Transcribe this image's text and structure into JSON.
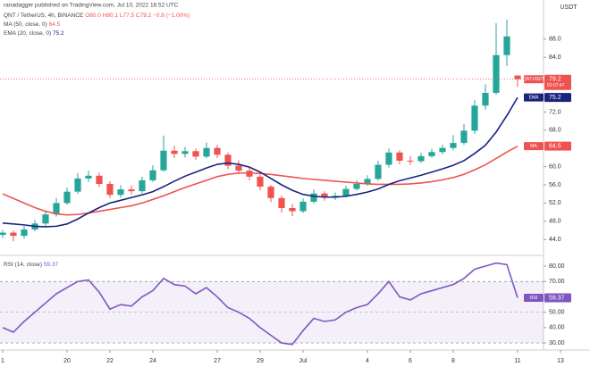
{
  "attribution": "ranadagger published on TradingView.com, Jul 10, 2022 16:52 UTC",
  "chart_data": [
    {
      "type": "candlestick",
      "title": "QNT / TetherUS, 4h, BINANCE",
      "ohlc_readout": "O80.0 H80.1 L77.5 C79.2 −0.8 (−1.00%)",
      "currency": "USDT",
      "symbol_tag": "QNTUSDT",
      "countdown": "01:07:47",
      "x": [
        17,
        17.5,
        18,
        18.5,
        19,
        19.5,
        20,
        20.5,
        21,
        21.5,
        22,
        22.5,
        23,
        23.5,
        24,
        24.5,
        25,
        25.5,
        26,
        26.5,
        27,
        27.5,
        28,
        28.5,
        29,
        29.5,
        30,
        30.5,
        31,
        31.5,
        32,
        32.5,
        33,
        33.5,
        34,
        34.5,
        35,
        35.5,
        36,
        36.5,
        37,
        37.5,
        38,
        38.5,
        39,
        39.5,
        40,
        40.5,
        41
      ],
      "open": [
        45.0,
        45.5,
        44.8,
        46.2,
        47.5,
        49.5,
        52.0,
        54.5,
        57.4,
        58.0,
        56.2,
        53.8,
        55.0,
        54.6,
        57.0,
        59.2,
        63.5,
        62.8,
        63.4,
        62.2,
        64.1,
        62.6,
        60.2,
        59.1,
        57.8,
        55.6,
        53.1,
        50.9,
        50.2,
        52.3,
        54.1,
        53.2,
        53.6,
        55.1,
        56.2,
        57.3,
        60.4,
        63.1,
        61.3,
        61.2,
        62.3,
        63.2,
        64.1,
        65.2,
        67.9,
        73.4,
        76.2,
        84.5,
        80.0
      ],
      "high": [
        46.1,
        46.0,
        46.9,
        48.3,
        50.2,
        53.1,
        55.4,
        58.6,
        59.1,
        58.7,
        56.8,
        55.9,
        55.8,
        57.8,
        60.3,
        66.8,
        64.6,
        64.3,
        64.0,
        65.3,
        64.8,
        63.1,
        61.4,
        59.9,
        58.3,
        56.0,
        53.6,
        51.8,
        53.0,
        55.0,
        54.6,
        54.3,
        55.8,
        57.0,
        58.1,
        61.3,
        64.0,
        63.6,
        62.3,
        63.0,
        63.9,
        64.8,
        66.9,
        69.3,
        74.6,
        78.1,
        91.5,
        92.3,
        80.1
      ],
      "low": [
        44.3,
        43.6,
        44.2,
        45.8,
        46.9,
        49.0,
        51.6,
        54.0,
        56.6,
        55.5,
        53.1,
        53.2,
        53.9,
        54.1,
        56.6,
        58.9,
        61.9,
        62.0,
        61.5,
        61.8,
        61.9,
        59.4,
        58.3,
        57.0,
        54.8,
        52.2,
        49.9,
        49.1,
        49.8,
        51.9,
        52.5,
        52.7,
        53.2,
        54.7,
        55.8,
        56.9,
        59.8,
        60.5,
        60.4,
        60.8,
        61.9,
        62.7,
        63.6,
        64.8,
        67.2,
        72.5,
        75.8,
        82.1,
        77.5
      ],
      "close": [
        45.5,
        44.8,
        46.2,
        47.5,
        49.5,
        52.0,
        54.5,
        57.4,
        58.0,
        56.2,
        53.8,
        55.0,
        54.6,
        57.0,
        59.2,
        63.5,
        62.8,
        63.4,
        62.2,
        64.1,
        62.6,
        60.2,
        59.1,
        57.8,
        55.6,
        53.1,
        50.9,
        50.2,
        52.3,
        54.1,
        53.2,
        53.6,
        55.1,
        56.2,
        57.3,
        60.4,
        63.1,
        61.3,
        61.2,
        62.3,
        63.2,
        64.1,
        65.2,
        67.9,
        73.4,
        76.2,
        84.5,
        88.6,
        79.2
      ],
      "up_color": "#26a69a",
      "down_color": "#ef5350",
      "series": [
        {
          "name": "MA (50, close, 0)",
          "tag": "MA",
          "color": "#ef5350",
          "values": [
            54.0,
            53.0,
            52.0,
            51.0,
            50.2,
            49.6,
            49.4,
            49.5,
            49.8,
            50.2,
            50.6,
            51.0,
            51.4,
            52.0,
            52.8,
            53.6,
            54.5,
            55.4,
            56.2,
            57.0,
            57.8,
            58.3,
            58.6,
            58.6,
            58.5,
            58.3,
            58.0,
            57.7,
            57.4,
            57.2,
            57.0,
            56.8,
            56.6,
            56.4,
            56.2,
            56.1,
            56.1,
            56.1,
            56.2,
            56.4,
            56.7,
            57.1,
            57.6,
            58.3,
            59.3,
            60.4,
            61.8,
            63.2,
            64.5
          ]
        },
        {
          "name": "EMA (20, close, 0)",
          "tag": "EMA",
          "color": "#1a237e",
          "values": [
            47.6,
            47.4,
            47.2,
            46.9,
            46.8,
            46.9,
            47.4,
            48.5,
            49.8,
            51.0,
            52.0,
            52.6,
            53.2,
            53.8,
            54.5,
            55.6,
            56.8,
            57.9,
            58.8,
            59.7,
            60.5,
            60.8,
            60.5,
            59.9,
            58.8,
            57.4,
            56.0,
            54.8,
            53.9,
            53.5,
            53.3,
            53.3,
            53.5,
            53.9,
            54.4,
            55.1,
            56.1,
            56.9,
            57.5,
            58.1,
            58.8,
            59.5,
            60.3,
            61.3,
            62.9,
            64.7,
            67.6,
            71.2,
            75.2
          ]
        }
      ],
      "xlim": [
        16.875,
        43.125
      ],
      "xticks": [
        {
          "value": 17,
          "label": "1"
        },
        20,
        22,
        24,
        27,
        29,
        {
          "value": 31,
          "label": "Jul"
        },
        {
          "value": 34,
          "label": "4"
        },
        {
          "value": 36,
          "label": "6"
        },
        {
          "value": 38,
          "label": "8"
        },
        {
          "value": 41,
          "label": "11"
        },
        {
          "value": 43,
          "label": "13"
        }
      ],
      "ylim": [
        40.7,
        96.6
      ],
      "yticks": [
        {
          "value": 88,
          "label": "88.0"
        },
        {
          "value": 84,
          "label": "84.0"
        },
        {
          "value": 72,
          "label": "72.0"
        },
        {
          "value": 68,
          "label": "68.0"
        },
        {
          "value": 60,
          "label": "60.0"
        },
        {
          "value": 56,
          "label": "56.0"
        },
        {
          "value": 52,
          "label": "52.0"
        },
        {
          "value": 48,
          "label": "48.0"
        },
        {
          "value": 44,
          "label": "44.0"
        }
      ]
    },
    {
      "type": "line",
      "x": [
        17,
        17.5,
        18,
        18.5,
        19,
        19.5,
        20,
        20.5,
        21,
        21.5,
        22,
        22.5,
        23,
        23.5,
        24,
        24.5,
        25,
        25.5,
        26,
        26.5,
        27,
        27.5,
        28,
        28.5,
        29,
        29.5,
        30,
        30.5,
        31,
        31.5,
        32,
        32.5,
        33,
        33.5,
        34,
        34.5,
        35,
        35.5,
        36,
        36.5,
        37,
        37.5,
        38,
        38.5,
        39,
        39.5,
        40,
        40.5,
        41
      ],
      "series": [
        {
          "name": "RSI (14, close)",
          "tag": "RSI",
          "color": "#7e57c2",
          "values": [
            40,
            37,
            44,
            50,
            56,
            62,
            66,
            70,
            71,
            63,
            52,
            55,
            54,
            60,
            64,
            72,
            68,
            67,
            62,
            66,
            60,
            53,
            50,
            46,
            40,
            35,
            30,
            29,
            38,
            46,
            44,
            45,
            50,
            53,
            55,
            62,
            70,
            60,
            58,
            62,
            64,
            66,
            68,
            72,
            78,
            80,
            82,
            81,
            59.37
          ]
        }
      ],
      "xlim": [
        16.875,
        43.125
      ],
      "ylim": [
        25.4,
        86.4
      ],
      "yticks": [
        {
          "value": 80,
          "label": "80.00"
        },
        {
          "value": 70,
          "label": "70.00"
        },
        {
          "value": 50,
          "label": "50.00"
        },
        {
          "value": 40,
          "label": "40.00"
        },
        {
          "value": 30,
          "label": "30.00"
        }
      ],
      "band": [
        30,
        70
      ],
      "midline": 50
    }
  ]
}
